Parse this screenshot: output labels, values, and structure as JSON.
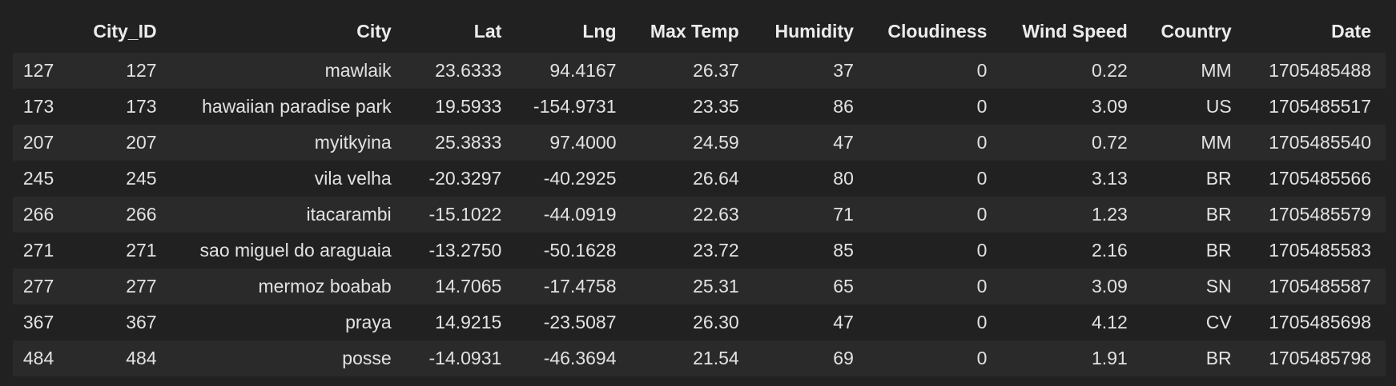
{
  "table": {
    "columns": [
      "",
      "City_ID",
      "City",
      "Lat",
      "Lng",
      "Max Temp",
      "Humidity",
      "Cloudiness",
      "Wind Speed",
      "Country",
      "Date"
    ],
    "rows": [
      [
        "127",
        "127",
        "mawlaik",
        "23.6333",
        "94.4167",
        "26.37",
        "37",
        "0",
        "0.22",
        "MM",
        "1705485488"
      ],
      [
        "173",
        "173",
        "hawaiian paradise park",
        "19.5933",
        "-154.9731",
        "23.35",
        "86",
        "0",
        "3.09",
        "US",
        "1705485517"
      ],
      [
        "207",
        "207",
        "myitkyina",
        "25.3833",
        "97.4000",
        "24.59",
        "47",
        "0",
        "0.72",
        "MM",
        "1705485540"
      ],
      [
        "245",
        "245",
        "vila velha",
        "-20.3297",
        "-40.2925",
        "26.64",
        "80",
        "0",
        "3.13",
        "BR",
        "1705485566"
      ],
      [
        "266",
        "266",
        "itacarambi",
        "-15.1022",
        "-44.0919",
        "22.63",
        "71",
        "0",
        "1.23",
        "BR",
        "1705485579"
      ],
      [
        "271",
        "271",
        "sao miguel do araguaia",
        "-13.2750",
        "-50.1628",
        "23.72",
        "85",
        "0",
        "2.16",
        "BR",
        "1705485583"
      ],
      [
        "277",
        "277",
        "mermoz boabab",
        "14.7065",
        "-17.4758",
        "25.31",
        "65",
        "0",
        "3.09",
        "SN",
        "1705485587"
      ],
      [
        "367",
        "367",
        "praya",
        "14.9215",
        "-23.5087",
        "26.30",
        "47",
        "0",
        "4.12",
        "CV",
        "1705485698"
      ],
      [
        "484",
        "484",
        "posse",
        "-14.0931",
        "-46.3694",
        "21.54",
        "69",
        "0",
        "1.91",
        "BR",
        "1705485798"
      ]
    ]
  }
}
